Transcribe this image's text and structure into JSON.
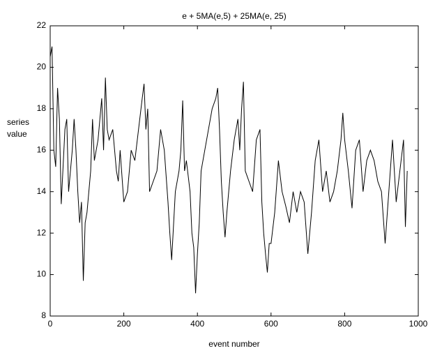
{
  "chart_data": {
    "type": "line",
    "title": "e + 5MA(e,5) + 25MA(e, 25)",
    "xlabel": "event number",
    "ylabel": [
      "series",
      "value"
    ],
    "color": "#000000",
    "x": [
      0,
      5,
      10,
      15,
      20,
      25,
      30,
      40,
      45,
      50,
      60,
      65,
      70,
      75,
      80,
      85,
      90,
      95,
      100,
      110,
      115,
      120,
      130,
      140,
      145,
      150,
      155,
      160,
      170,
      175,
      180,
      185,
      190,
      200,
      210,
      220,
      230,
      240,
      250,
      255,
      260,
      265,
      270,
      280,
      290,
      300,
      310,
      320,
      325,
      330,
      340,
      350,
      355,
      360,
      365,
      370,
      380,
      385,
      390,
      395,
      400,
      405,
      410,
      420,
      430,
      440,
      450,
      455,
      460,
      465,
      470,
      475,
      480,
      490,
      500,
      510,
      515,
      520,
      525,
      530,
      540,
      550,
      560,
      570,
      575,
      580,
      585,
      590,
      595,
      600,
      610,
      620,
      630,
      640,
      650,
      660,
      670,
      680,
      690,
      700,
      710,
      720,
      730,
      740,
      750,
      760,
      770,
      780,
      790,
      795,
      800,
      810,
      820,
      830,
      840,
      850,
      860,
      870,
      880,
      890,
      900,
      910,
      920,
      930,
      940,
      950,
      960,
      965,
      970
    ],
    "values": [
      20.5,
      21,
      16,
      15.2,
      19,
      17.5,
      13.4,
      17,
      17.5,
      14,
      16,
      17.5,
      16,
      14,
      12.5,
      13.5,
      9.7,
      12.5,
      13,
      15,
      17.5,
      15.5,
      16.5,
      18.5,
      16,
      19.5,
      17,
      16.5,
      17,
      16,
      15,
      14.5,
      16,
      13.5,
      14,
      16,
      15.5,
      17,
      18.5,
      19.2,
      17,
      18,
      14,
      14.5,
      15,
      17,
      16,
      13.5,
      12,
      10.7,
      14,
      15,
      16,
      18.4,
      15,
      15.5,
      14,
      12,
      11.3,
      9.1,
      11,
      12.5,
      15,
      16,
      17,
      18,
      18.5,
      19,
      17,
      14.5,
      13,
      11.8,
      13,
      15,
      16.5,
      17.5,
      16,
      18,
      19.3,
      15,
      14.5,
      14,
      16.5,
      17,
      13.5,
      12,
      11,
      10.1,
      11.5,
      11.5,
      13,
      15.5,
      14,
      13.3,
      12.5,
      14,
      13,
      14,
      13.5,
      11,
      13,
      15.5,
      16.5,
      14,
      15,
      13.5,
      14,
      15,
      16.5,
      17.8,
      16.5,
      15,
      13.2,
      16,
      16.5,
      14,
      15.5,
      16,
      15.5,
      14.5,
      14,
      11.5,
      14,
      16.5,
      13.5,
      15,
      16.5,
      12.3,
      15
    ],
    "xlim": [
      0,
      1000
    ],
    "xticks": [
      0,
      200,
      400,
      600,
      800,
      1000
    ],
    "ylim": [
      8,
      22
    ],
    "yticks": [
      8,
      10,
      12,
      14,
      16,
      18,
      20,
      22
    ]
  }
}
